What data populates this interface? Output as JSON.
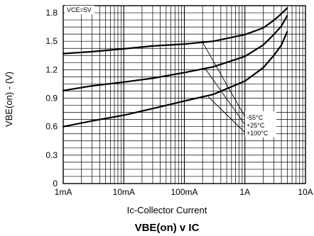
{
  "chart_data": {
    "type": "line",
    "title_main": "VBE(on)",
    "title_connector": "v",
    "title_end": "IC",
    "xlabel": "Ic-Collector Current",
    "ylabel": "VBE(on) - (V)",
    "x_scale": "log",
    "x_ticks": [
      {
        "value": 0.001,
        "label": "1mA"
      },
      {
        "value": 0.01,
        "label": "10mA"
      },
      {
        "value": 0.1,
        "label": "100mA"
      },
      {
        "value": 1,
        "label": "1A"
      },
      {
        "value": 10,
        "label": "10A"
      }
    ],
    "y_ticks": [
      {
        "value": 0,
        "label": "0"
      },
      {
        "value": 0.3,
        "label": "0.3"
      },
      {
        "value": 0.6,
        "label": "0.6"
      },
      {
        "value": 0.9,
        "label": "0.9"
      },
      {
        "value": 1.2,
        "label": "1.2"
      },
      {
        "value": 1.5,
        "label": "1.5"
      },
      {
        "value": 1.8,
        "label": "1.8"
      }
    ],
    "xlim": [
      0.001,
      10
    ],
    "ylim": [
      0,
      1.875
    ],
    "grid": true,
    "condition_label": "VCE=5V",
    "series": [
      {
        "name": "-55°C",
        "x": [
          0.001,
          0.003,
          0.01,
          0.03,
          0.1,
          0.3,
          1,
          2,
          3,
          4,
          5
        ],
        "y": [
          1.37,
          1.39,
          1.42,
          1.45,
          1.47,
          1.5,
          1.57,
          1.64,
          1.72,
          1.79,
          1.85
        ]
      },
      {
        "name": "+25°C",
        "x": [
          0.001,
          0.003,
          0.01,
          0.03,
          0.1,
          0.3,
          1,
          2,
          3,
          4,
          5
        ],
        "y": [
          0.98,
          1.03,
          1.07,
          1.11,
          1.17,
          1.23,
          1.34,
          1.46,
          1.57,
          1.66,
          1.77
        ]
      },
      {
        "name": "+100°C",
        "x": [
          0.001,
          0.003,
          0.01,
          0.03,
          0.1,
          0.3,
          1,
          2,
          3,
          4,
          5
        ],
        "y": [
          0.6,
          0.66,
          0.72,
          0.79,
          0.87,
          0.94,
          1.08,
          1.22,
          1.35,
          1.46,
          1.6
        ]
      }
    ]
  }
}
